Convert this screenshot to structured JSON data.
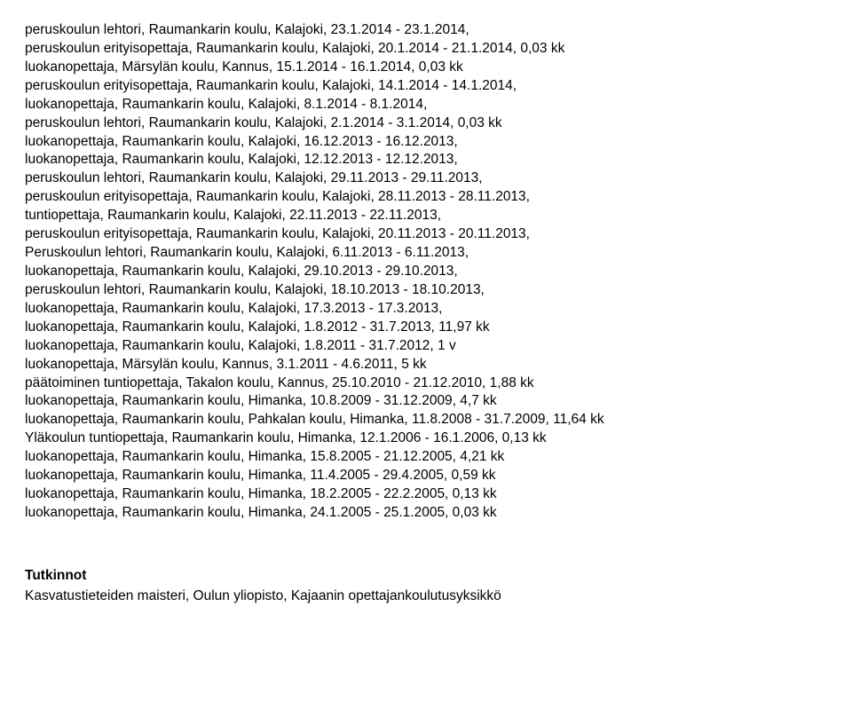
{
  "employment_history": [
    "peruskoulun lehtori, Raumankarin koulu, Kalajoki, 23.1.2014 - 23.1.2014,",
    "peruskoulun erityisopettaja, Raumankarin koulu, Kalajoki, 20.1.2014 - 21.1.2014, 0,03 kk",
    "luokanopettaja, Märsylän koulu, Kannus, 15.1.2014 - 16.1.2014, 0,03 kk",
    "peruskoulun erityisopettaja, Raumankarin koulu, Kalajoki, 14.1.2014 - 14.1.2014,",
    "luokanopettaja, Raumankarin koulu, Kalajoki, 8.1.2014 - 8.1.2014,",
    "peruskoulun lehtori, Raumankarin koulu, Kalajoki, 2.1.2014 - 3.1.2014, 0,03 kk",
    "luokanopettaja, Raumankarin koulu, Kalajoki, 16.12.2013 - 16.12.2013,",
    "luokanopettaja, Raumankarin koulu, Kalajoki, 12.12.2013 - 12.12.2013,",
    "peruskoulun lehtori, Raumankarin koulu, Kalajoki, 29.11.2013 - 29.11.2013,",
    "peruskoulun erityisopettaja, Raumankarin koulu, Kalajoki, 28.11.2013 - 28.11.2013,",
    "tuntiopettaja, Raumankarin koulu, Kalajoki, 22.11.2013 - 22.11.2013,",
    "peruskoulun erityisopettaja, Raumankarin koulu, Kalajoki, 20.11.2013 - 20.11.2013,",
    "Peruskoulun lehtori, Raumankarin koulu, Kalajoki, 6.11.2013 - 6.11.2013,",
    "luokanopettaja, Raumankarin koulu, Kalajoki, 29.10.2013 - 29.10.2013,",
    "peruskoulun lehtori, Raumankarin koulu, Kalajoki, 18.10.2013 - 18.10.2013,",
    "luokanopettaja, Raumankarin koulu, Kalajoki, 17.3.2013 - 17.3.2013,",
    "luokanopettaja, Raumankarin koulu, Kalajoki, 1.8.2012 - 31.7.2013, 11,97 kk",
    "luokanopettaja, Raumankarin koulu, Kalajoki, 1.8.2011 - 31.7.2012, 1 v",
    "luokanopettaja, Märsylän koulu, Kannus, 3.1.2011 - 4.6.2011, 5 kk",
    "päätoiminen tuntiopettaja, Takalon koulu, Kannus, 25.10.2010 - 21.12.2010, 1,88 kk",
    "luokanopettaja, Raumankarin koulu, Himanka, 10.8.2009 - 31.12.2009, 4,7 kk",
    "luokanopettaja, Raumankarin koulu, Pahkalan koulu, Himanka, 11.8.2008 - 31.7.2009, 11,64 kk",
    "Yläkoulun tuntiopettaja, Raumankarin koulu, Himanka, 12.1.2006 - 16.1.2006, 0,13 kk",
    "luokanopettaja, Raumankarin koulu, Himanka, 15.8.2005 - 21.12.2005, 4,21 kk",
    "luokanopettaja, Raumankarin koulu, Himanka, 11.4.2005 - 29.4.2005, 0,59 kk",
    "luokanopettaja, Raumankarin koulu, Himanka, 18.2.2005 - 22.2.2005, 0,13 kk",
    "luokanopettaja, Raumankarin koulu, Himanka, 24.1.2005 - 25.1.2005, 0,03 kk"
  ],
  "degrees": {
    "title": "Tutkinnot",
    "items": [
      "Kasvatustieteiden maisteri, Oulun yliopisto, Kajaanin opettajankoulutusyksikkö"
    ]
  }
}
